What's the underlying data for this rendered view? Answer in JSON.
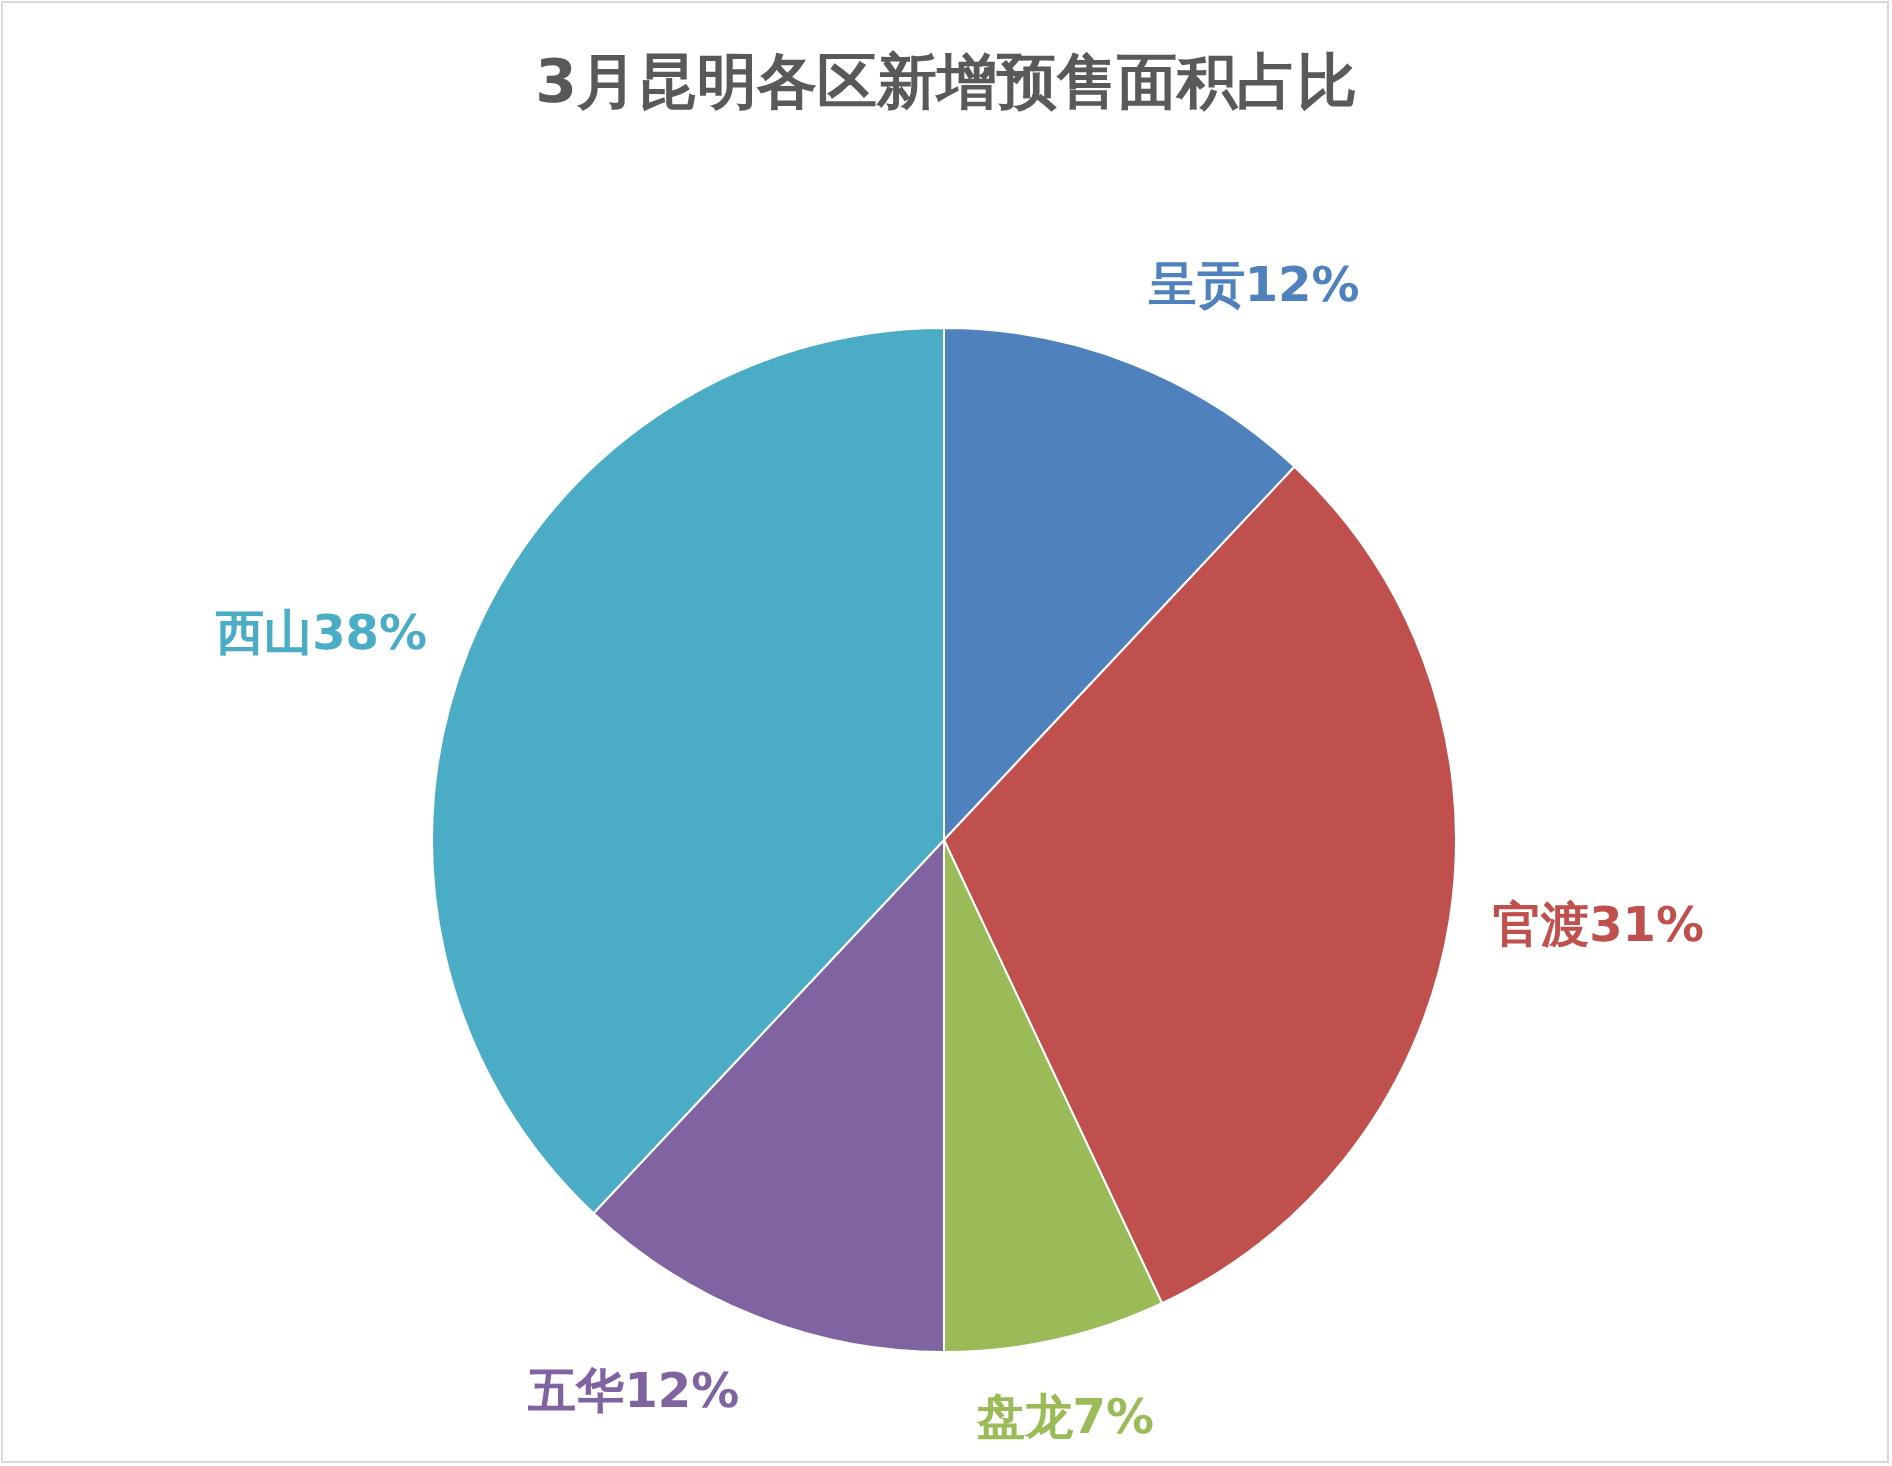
{
  "chart_data": {
    "type": "pie",
    "title": "3月昆明各区新增预售面积占比",
    "categories": [
      "呈贡",
      "官渡",
      "盘龙",
      "五华",
      "西山"
    ],
    "values": [
      12,
      31,
      7,
      12,
      38
    ],
    "value_labels": [
      "12%",
      "31%",
      "7%",
      "12%",
      "38%"
    ],
    "colors": [
      "#4f81bd",
      "#c0504d",
      "#9bbb59",
      "#8064a2",
      "#4bacc6"
    ]
  }
}
